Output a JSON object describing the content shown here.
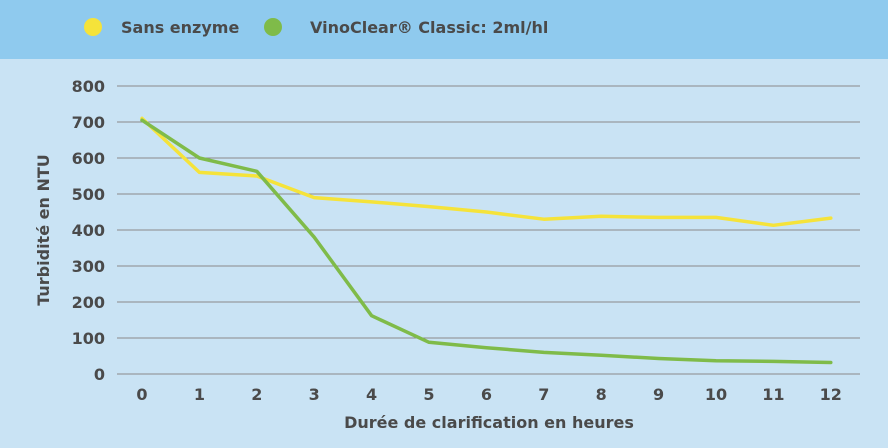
{
  "chart_data": {
    "type": "line",
    "x": [
      0,
      1,
      2,
      3,
      4,
      5,
      6,
      7,
      8,
      9,
      10,
      11,
      12
    ],
    "series": [
      {
        "name": "Sans enzyme",
        "color": "#f5e33a",
        "values": [
          710,
          560,
          550,
          490,
          478,
          465,
          450,
          430,
          438,
          435,
          435,
          413,
          433
        ]
      },
      {
        "name": "VinoClear® Classic: 2ml/hl",
        "color": "#7fbb49",
        "values": [
          705,
          600,
          563,
          380,
          162,
          88,
          73,
          60,
          52,
          43,
          37,
          35,
          32
        ]
      }
    ],
    "xlabel": "Durée de clarification en heures",
    "ylabel": "Turbidité en NTU",
    "ylim": [
      0,
      800
    ],
    "yticks": [
      0,
      100,
      200,
      300,
      400,
      500,
      600,
      700,
      800
    ],
    "grid": true,
    "legend": "top"
  }
}
